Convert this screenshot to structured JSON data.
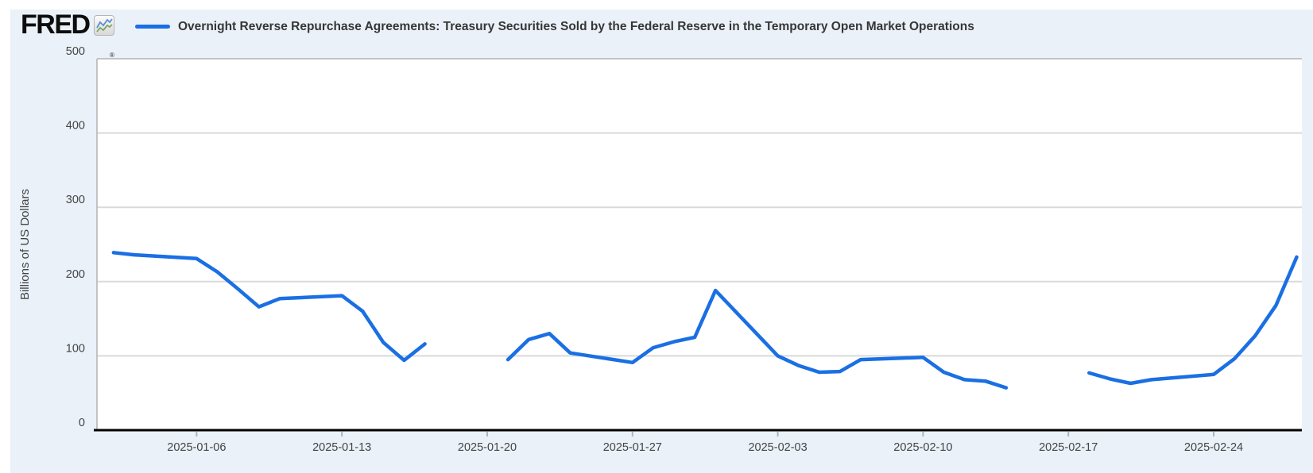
{
  "header": {
    "logo_text": "FRED",
    "registered_mark": "®",
    "logo_icon": "line-chart-icon"
  },
  "chart_data": {
    "type": "line",
    "title": "Overnight Reverse Repurchase Agreements: Treasury Securities Sold by the Federal Reserve in the Temporary Open Market Operations",
    "ylabel": "Billions of US Dollars",
    "ylim": [
      0,
      500
    ],
    "yticks": [
      0,
      100,
      200,
      300,
      400,
      500
    ],
    "xtick_labels": [
      "2025-01-06",
      "2025-01-13",
      "2025-01-20",
      "2025-01-27",
      "2025-02-03",
      "2025-02-10",
      "2025-02-17",
      "2025-02-24"
    ],
    "x_range": [
      "2025-01-01",
      "2025-03-01"
    ],
    "grid": "horizontal",
    "legend_position": "top-left",
    "line_color": "#1a6fe3",
    "points": [
      {
        "date": "2025-01-02",
        "value": 239
      },
      {
        "date": "2025-01-03",
        "value": 236
      },
      {
        "date": "2025-01-06",
        "value": 231
      },
      {
        "date": "2025-01-07",
        "value": 213
      },
      {
        "date": "2025-01-08",
        "value": 190
      },
      {
        "date": "2025-01-09",
        "value": 166
      },
      {
        "date": "2025-01-10",
        "value": 177
      },
      {
        "date": "2025-01-13",
        "value": 181
      },
      {
        "date": "2025-01-14",
        "value": 160
      },
      {
        "date": "2025-01-15",
        "value": 118
      },
      {
        "date": "2025-01-16",
        "value": 94
      },
      {
        "date": "2025-01-17",
        "value": 116
      },
      {
        "date": "2025-01-20",
        "value": null
      },
      {
        "date": "2025-01-21",
        "value": 95
      },
      {
        "date": "2025-01-22",
        "value": 122
      },
      {
        "date": "2025-01-23",
        "value": 130
      },
      {
        "date": "2025-01-24",
        "value": 104
      },
      {
        "date": "2025-01-27",
        "value": 91
      },
      {
        "date": "2025-01-28",
        "value": 111
      },
      {
        "date": "2025-01-29",
        "value": 119
      },
      {
        "date": "2025-01-30",
        "value": 125
      },
      {
        "date": "2025-01-31",
        "value": 188
      },
      {
        "date": "2025-02-03",
        "value": 100
      },
      {
        "date": "2025-02-04",
        "value": 87
      },
      {
        "date": "2025-02-05",
        "value": 78
      },
      {
        "date": "2025-02-06",
        "value": 79
      },
      {
        "date": "2025-02-07",
        "value": 95
      },
      {
        "date": "2025-02-10",
        "value": 98
      },
      {
        "date": "2025-02-11",
        "value": 78
      },
      {
        "date": "2025-02-12",
        "value": 68
      },
      {
        "date": "2025-02-13",
        "value": 66
      },
      {
        "date": "2025-02-14",
        "value": 57
      },
      {
        "date": "2025-02-17",
        "value": null
      },
      {
        "date": "2025-02-18",
        "value": 77
      },
      {
        "date": "2025-02-19",
        "value": 69
      },
      {
        "date": "2025-02-20",
        "value": 63
      },
      {
        "date": "2025-02-21",
        "value": 68
      },
      {
        "date": "2025-02-24",
        "value": 75
      },
      {
        "date": "2025-02-25",
        "value": 96
      },
      {
        "date": "2025-02-26",
        "value": 127
      },
      {
        "date": "2025-02-27",
        "value": 168
      },
      {
        "date": "2025-02-28",
        "value": 233
      }
    ]
  },
  "colors": {
    "page_background": "#ffffff",
    "panel_background": "#eaf1f9",
    "plot_background": "#ffffff",
    "line": "#1a6fe3",
    "gridline": "#d9d9d9",
    "plot_border": "#b3b3b3",
    "x_axis": "#000000",
    "tick_mark": "#a9b4bf",
    "axis_text": "#444444",
    "title_text": "#363636",
    "logo_icon_blue": "#5b8fd4",
    "logo_icon_green": "#7aa860"
  }
}
